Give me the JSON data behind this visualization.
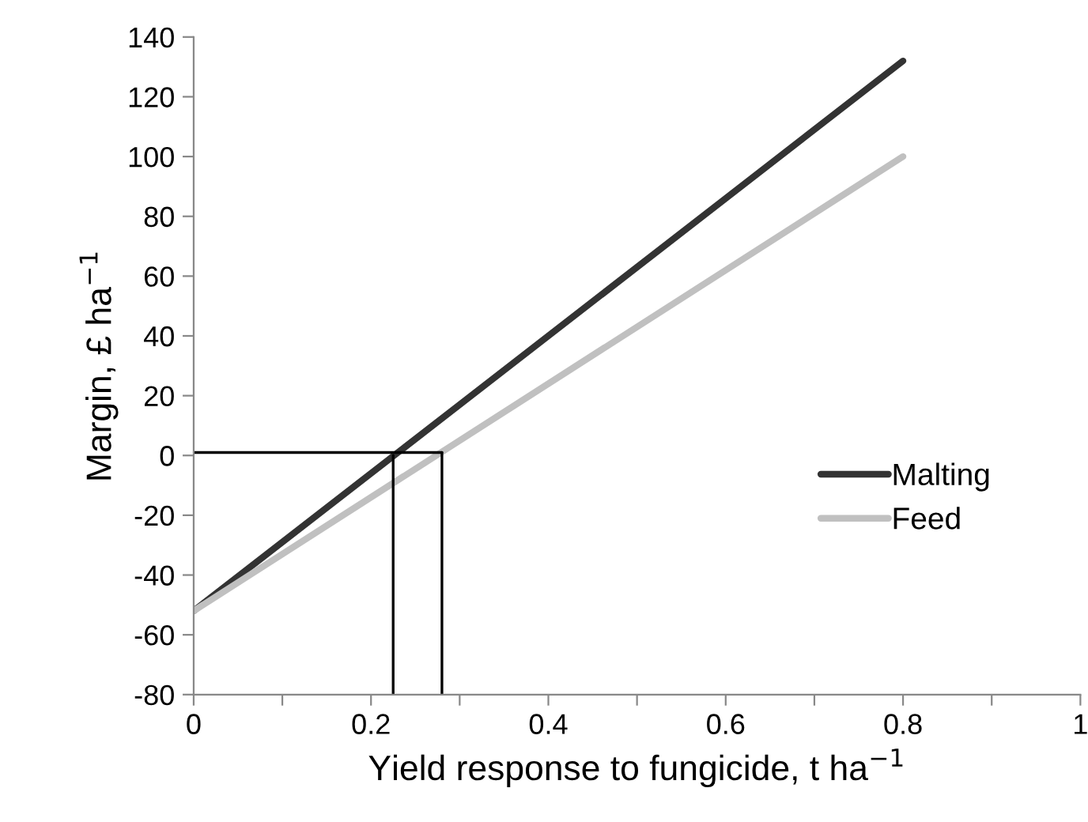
{
  "chart_data": {
    "type": "line",
    "xlabel": "Yield response to fungicide, t ha$^{−1}$",
    "ylabel": "Margin, £ ha$^{−1}$",
    "xlim": [
      0,
      1
    ],
    "ylim": [
      -80,
      140
    ],
    "xticks": [
      0,
      {
        "value": 0.1,
        "label": null
      },
      0.2,
      {
        "value": 0.3,
        "label": null
      },
      0.4,
      {
        "value": 0.5,
        "label": null
      },
      0.6,
      {
        "value": 0.7,
        "label": null
      },
      0.8,
      {
        "value": 0.9,
        "label": null
      },
      1
    ],
    "yticks": [
      -80,
      -60,
      -40,
      -20,
      0,
      20,
      40,
      60,
      80,
      100,
      120,
      140
    ],
    "grid": false,
    "legend": "bottom right",
    "marker": "none",
    "line_style": "solid",
    "series": [
      {
        "name": "Malting",
        "color": "#333333",
        "x": [
          0,
          0.8
        ],
        "values": [
          -52,
          132
        ]
      },
      {
        "name": "Feed",
        "color": "#c0c0c0",
        "x": [
          0,
          0.8
        ],
        "values": [
          -52,
          100
        ]
      },
      {
        "color": "#000000",
        "x": [
          0,
          0.28
        ],
        "values": [
          1,
          1
        ]
      },
      {
        "color": "#000000",
        "x": [
          0.225,
          0.225
        ],
        "values": [
          -80,
          0
        ]
      },
      {
        "color": "#000000",
        "x": [
          0.28,
          0.28
        ],
        "values": [
          -80,
          1
        ]
      }
    ]
  }
}
